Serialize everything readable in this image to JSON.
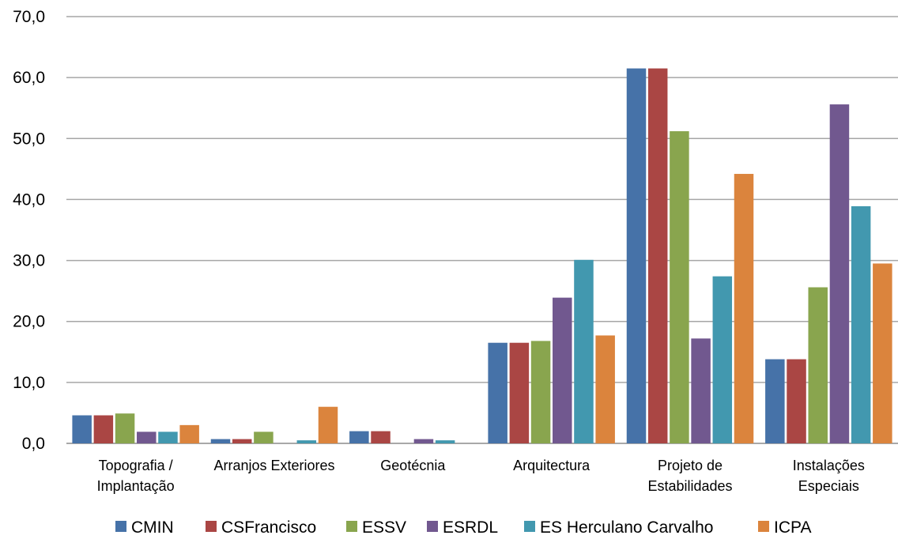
{
  "chart_data": {
    "type": "bar",
    "categories": [
      [
        "Topografia /",
        "Implantação"
      ],
      [
        "Arranjos Exteriores"
      ],
      [
        "Geotécnia"
      ],
      [
        "Arquitectura"
      ],
      [
        "Projeto de",
        "Estabilidades"
      ],
      [
        "Instalações",
        "Especiais"
      ]
    ],
    "series": [
      {
        "name": "CMIN",
        "color": "#4672a8",
        "values": [
          4.6,
          0.7,
          2.0,
          16.5,
          61.5,
          13.8
        ]
      },
      {
        "name": "CSFrancisco",
        "color": "#aa4644",
        "values": [
          4.6,
          0.7,
          2.0,
          16.5,
          61.5,
          13.8
        ]
      },
      {
        "name": "ESSV",
        "color": "#89a54e",
        "values": [
          4.9,
          1.9,
          0.0,
          16.8,
          51.2,
          25.6
        ]
      },
      {
        "name": "ESRDL",
        "color": "#71588f",
        "values": [
          1.9,
          0.0,
          0.7,
          23.9,
          17.2,
          55.6
        ]
      },
      {
        "name": "ES Herculano Carvalho",
        "color": "#4298af",
        "values": [
          1.9,
          0.5,
          0.5,
          30.1,
          27.4,
          38.9
        ]
      },
      {
        "name": "ICPA",
        "color": "#db843d",
        "values": [
          3.0,
          6.0,
          0.0,
          17.7,
          44.2,
          29.5
        ]
      }
    ],
    "yticks": [
      "0,0",
      "10,0",
      "20,0",
      "30,0",
      "40,0",
      "50,0",
      "60,0",
      "70,0"
    ],
    "ylim": [
      0,
      70
    ],
    "grid": true,
    "legend_position": "bottom"
  }
}
